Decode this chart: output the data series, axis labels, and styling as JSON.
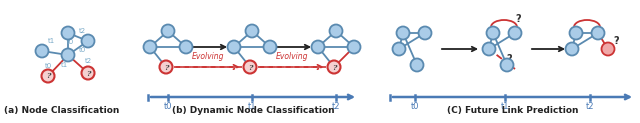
{
  "title_a": "(a) Node Classification",
  "title_b": "(b) Dynamic Node Classification",
  "title_c": "(C) Future Link Prediction",
  "node_color": "#aacce8",
  "edge_color": "#5a8ab0",
  "red_border_color": "#cc3333",
  "red_fill_color": "#f5d0d0",
  "red_node_pink": "#f0a8a8",
  "arrow_color": "#222222",
  "timeline_color": "#4a7ab5",
  "evolving_color": "#cc3333",
  "label_color": "#7aaac8",
  "title_color": "#222222",
  "background": "#ffffff",
  "fig_width": 6.4,
  "fig_height": 1.23,
  "node_r": 6.5
}
